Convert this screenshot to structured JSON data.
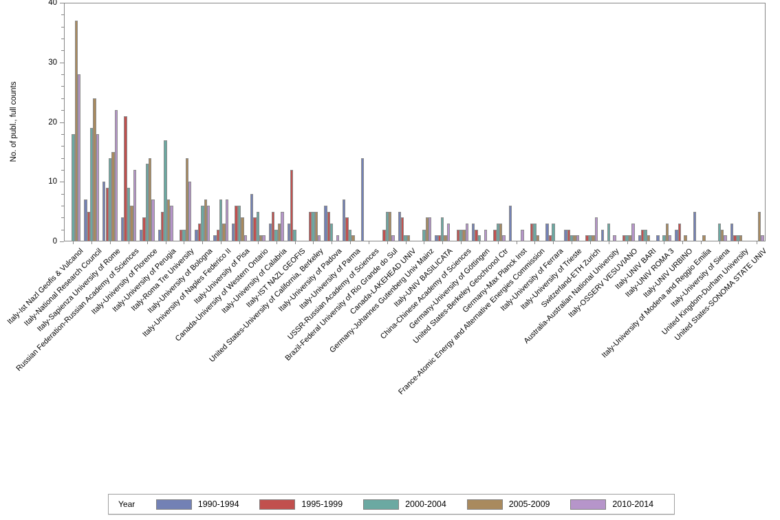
{
  "figure_title": "",
  "legend": {
    "title": "Year"
  },
  "y_axis": {
    "label": "No. of publ., full counts"
  },
  "chart_data": {
    "type": "bar",
    "grouped": true,
    "title": "",
    "xlabel": "",
    "ylabel": "No. of publ., full counts",
    "ylim": [
      0,
      40
    ],
    "ymajor_ticks": [
      0,
      10,
      20,
      30,
      40
    ],
    "yminor_step": 2,
    "grid": false,
    "legend_position": "bottom",
    "legend_title": "Year",
    "axis_color": "#868686",
    "bar_border_color": "#8c8c8c",
    "categories": [
      "Italy-Ist Nazl Geofis & Vulcanol",
      "Italy-National Research Council",
      "Italy-Sapienza University of Rome",
      "Russian Federation-Russian Academy of Sciences",
      "Italy-University of Florence",
      "Italy-University of Perugia",
      "Italy-Roma Tre University",
      "Italy-University of Bologna",
      "Italy-University of Naples Federico II",
      "Italy-University of Pisa",
      "Canada-University of Western Ontario",
      "Italy-University of Calabria",
      "Italy-IST NAZL GEOFIS",
      "United States-University of California, Berkeley",
      "Italy-University of Padova",
      "Italy-University of Parma",
      "USSR-Russian Academy of Sciences",
      "Brazil-Federal University of Rio Grande do Sul",
      "Canada-LAKEHEAD UNIV",
      "Germany-Johannes Gutenberg Univ Mainz",
      "Italy-UNIV BASILICATA",
      "China-Chinese Academy of Sciences",
      "Germany-University of Göttingen",
      "United States-Berkeley Geochronol Ctr",
      "Germany-Max Planck Inst",
      "France-Atomic Energy and Alternative Energies Commission",
      "Italy-University of Ferrara",
      "Italy-University of Trieste",
      "Switzerland-ETH Zurich",
      "Australia-Australian National University",
      "Italy-OSSERV VESUVIANO",
      "Italy-UNIV BARI",
      "Italy-UNIV ROMA 3",
      "Italy-UNIV URBINO",
      "Italy-University of Modena and Reggio Emilia",
      "Italy-University of Siena",
      "United Kingdom-Durham University",
      "United States-SONOMA STATE UNIV"
    ],
    "series": [
      {
        "name": "1990-1994",
        "color": "#7381b5",
        "values": [
          0,
          7,
          10,
          4,
          2,
          2,
          0,
          2,
          1,
          3,
          8,
          3,
          3,
          0,
          6,
          7,
          14,
          0,
          5,
          0,
          1,
          0,
          3,
          0,
          6,
          0,
          3,
          2,
          0,
          2,
          0,
          1,
          1,
          2,
          5,
          0,
          3,
          0
        ]
      },
      {
        "name": "1995-1999",
        "color": "#c1504e",
        "values": [
          0,
          5,
          9,
          21,
          4,
          5,
          2,
          3,
          2,
          6,
          4,
          5,
          12,
          5,
          5,
          4,
          0,
          2,
          4,
          0,
          1,
          2,
          2,
          2,
          0,
          3,
          1,
          2,
          1,
          0,
          1,
          2,
          0,
          3,
          0,
          0,
          1,
          0
        ]
      },
      {
        "name": "2000-2004",
        "color": "#6ba9a2",
        "values": [
          18,
          19,
          14,
          9,
          13,
          17,
          2,
          6,
          7,
          6,
          5,
          2,
          2,
          5,
          3,
          2,
          0,
          5,
          1,
          2,
          4,
          2,
          1,
          3,
          0,
          3,
          3,
          1,
          1,
          3,
          1,
          2,
          1,
          0,
          0,
          3,
          1,
          0
        ]
      },
      {
        "name": "2005-2009",
        "color": "#a98a5e",
        "values": [
          37,
          24,
          15,
          6,
          14,
          7,
          14,
          7,
          3,
          4,
          1,
          3,
          0,
          5,
          0,
          1,
          0,
          5,
          1,
          4,
          1,
          2,
          0,
          3,
          0,
          1,
          0,
          1,
          1,
          0,
          1,
          1,
          3,
          1,
          1,
          2,
          1,
          5
        ]
      },
      {
        "name": "2010-2014",
        "color": "#b695ca",
        "values": [
          28,
          18,
          22,
          12,
          7,
          6,
          10,
          6,
          7,
          1,
          1,
          5,
          0,
          1,
          1,
          0,
          0,
          1,
          0,
          4,
          3,
          3,
          2,
          1,
          2,
          0,
          0,
          1,
          4,
          1,
          3,
          0,
          1,
          0,
          0,
          1,
          0,
          1
        ]
      }
    ]
  }
}
